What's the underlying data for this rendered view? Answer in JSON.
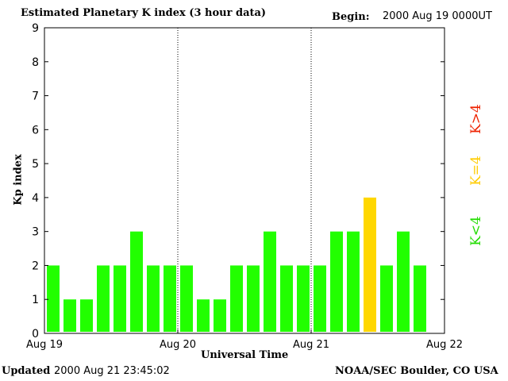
{
  "title": "Estimated Planetary K index (3 hour data)",
  "begin": {
    "label": "Begin:",
    "value": "2000 Aug 19 0000UT"
  },
  "updated": {
    "label": "Updated",
    "value": "2000 Aug 21 23:45:02"
  },
  "credit": "NOAA/SEC Boulder, CO USA",
  "legend": {
    "gt": "K>4",
    "eq": "K=4",
    "lt": "K<4"
  },
  "colors": {
    "below4": "#22ff00",
    "equal4": "#ffd700",
    "above4": "#ff2200"
  },
  "chart_data": {
    "type": "bar",
    "title": "Estimated Planetary K index (3 hour data)",
    "xlabel": "Universal Time",
    "ylabel": "Kp index",
    "ylim": [
      0,
      9
    ],
    "yticks": [
      "0",
      "1",
      "2",
      "3",
      "4",
      "5",
      "6",
      "7",
      "8",
      "9"
    ],
    "xticks": [
      "Aug 19",
      "Aug 20",
      "Aug 21",
      "Aug 22"
    ],
    "day_separators": [
      "Aug 20",
      "Aug 21"
    ],
    "interval_hours": 3,
    "values": [
      2,
      1,
      1,
      2,
      2,
      3,
      2,
      2,
      2,
      1,
      1,
      2,
      2,
      3,
      2,
      2,
      2,
      3,
      3,
      4,
      2,
      3,
      2
    ]
  }
}
